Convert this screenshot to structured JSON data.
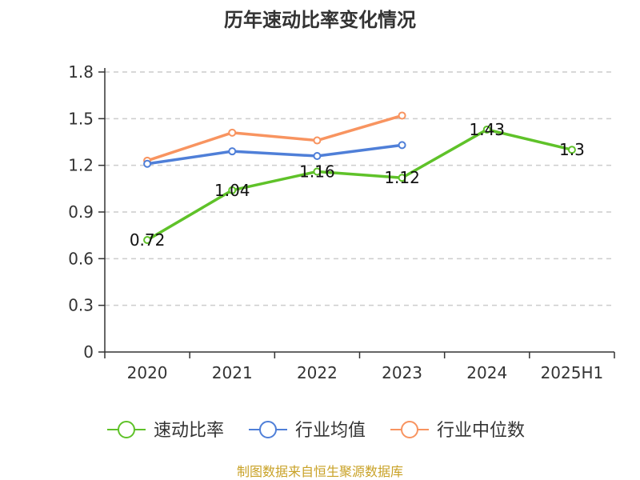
{
  "chart_data": {
    "type": "line",
    "title": "历年速动比率变化情况",
    "categories": [
      "2020",
      "2021",
      "2022",
      "2023",
      "2024",
      "2025H1"
    ],
    "ylim": [
      0,
      1.8
    ],
    "yticks": [
      "0",
      "0.3",
      "0.6",
      "0.9",
      "1.2",
      "1.5",
      "1.8"
    ],
    "grid": true,
    "legend_position": "bottom",
    "series": [
      {
        "name": "速动比率",
        "color": "#5fc229",
        "values": [
          0.72,
          1.04,
          1.16,
          1.12,
          1.43,
          1.3
        ],
        "labels": [
          "0.72",
          "1.04",
          "1.16",
          "1.12",
          "1.43",
          "1.3"
        ]
      },
      {
        "name": "行业均值",
        "color": "#4f7fd8",
        "values": [
          1.21,
          1.29,
          1.26,
          1.33,
          null,
          null
        ]
      },
      {
        "name": "行业中位数",
        "color": "#f89460",
        "values": [
          1.23,
          1.41,
          1.36,
          1.52,
          null,
          null
        ]
      }
    ]
  },
  "footer": {
    "source": "制图数据来自恒生聚源数据库",
    "color": "#c9a227"
  }
}
